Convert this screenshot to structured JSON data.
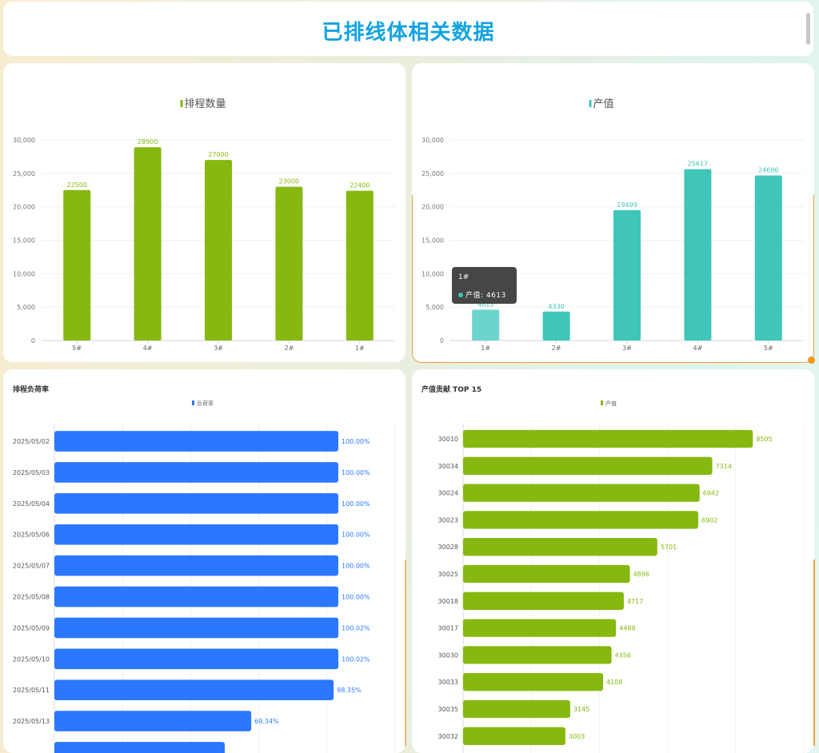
{
  "header": {
    "title": "已排线体相关数据"
  },
  "colors": {
    "green": "#86b80f",
    "teal": "#3fc6b9",
    "teal_hover": "#6bd4cd",
    "blue": "#2b78fe",
    "title_blue": "#12a3e0"
  },
  "charts": {
    "schedule_qty": {
      "legend": "排程数量",
      "chart_data": {
        "type": "bar",
        "categories": [
          "5#",
          "4#",
          "3#",
          "2#",
          "1#"
        ],
        "series": [
          {
            "name": "排程数量",
            "values": [
              22500,
              28900,
              27000,
              23000,
              22400
            ]
          }
        ],
        "y_ticks": [
          "0",
          "5,000",
          "10,000",
          "15,000",
          "20,000",
          "25,000",
          "30,000"
        ],
        "ylim": [
          0,
          30000
        ]
      }
    },
    "output_value": {
      "legend": "产值",
      "chart_data": {
        "type": "bar",
        "categories": [
          "1#",
          "2#",
          "3#",
          "4#",
          "5#"
        ],
        "series": [
          {
            "name": "产值",
            "values": [
              4613,
              4330,
              19499,
              25617,
              24686
            ]
          }
        ],
        "y_ticks": [
          "0",
          "5,000",
          "10,000",
          "15,000",
          "20,000",
          "25,000",
          "30,000"
        ],
        "ylim": [
          0,
          30000
        ]
      },
      "tooltip": {
        "title": "1#",
        "label": "产值:",
        "value": "4613"
      }
    },
    "load_rate": {
      "title": "排程负荷率",
      "legend": "负荷率",
      "chart_data": {
        "type": "bar",
        "orientation": "horizontal",
        "categories": [
          "2025/05/02",
          "2025/05/03",
          "2025/05/04",
          "2025/05/06",
          "2025/05/07",
          "2025/05/08",
          "2025/05/09",
          "2025/05/10",
          "2025/05/11",
          "2025/05/13",
          ""
        ],
        "series": [
          {
            "name": "负荷率",
            "values": [
              100.0,
              100.0,
              100.0,
              100.0,
              100.0,
              100.0,
              100.02,
              100.02,
              98.35,
              69.34,
              60.0
            ]
          }
        ],
        "labels": [
          "100.00%",
          "100.00%",
          "100.00%",
          "100.00%",
          "100.00%",
          "100.00%",
          "100.02%",
          "100.02%",
          "98.35%",
          "69.34%",
          ""
        ],
        "xlim": [
          0,
          120
        ]
      }
    },
    "top15": {
      "title": "产值贡献 TOP 15",
      "legend": "产值",
      "chart_data": {
        "type": "bar",
        "orientation": "horizontal",
        "categories": [
          "30010",
          "30034",
          "30024",
          "30023",
          "30028",
          "30025",
          "30018",
          "30017",
          "30030",
          "30033",
          "30035",
          "30032"
        ],
        "series": [
          {
            "name": "产值",
            "values": [
              8505,
              7314,
              6942,
              6902,
              5701,
              4896,
              4717,
              4488,
              4356,
              4108,
              3145,
              3003
            ]
          }
        ],
        "xlim": [
          0,
          10000
        ]
      }
    }
  }
}
